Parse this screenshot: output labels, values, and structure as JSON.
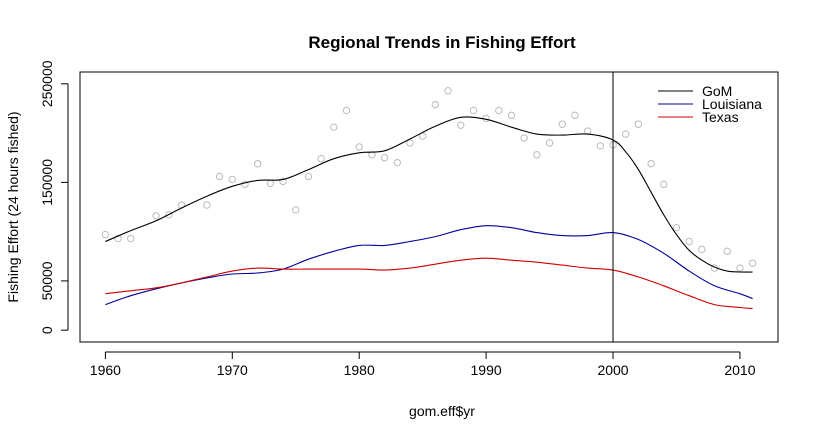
{
  "chart_data": {
    "type": "scatter",
    "title": "Regional Trends in Fishing Effort",
    "xlabel": "gom.eff$yr",
    "ylabel": "Fishing Effort (24 hours fished)",
    "xlim": [
      1958,
      2013
    ],
    "ylim": [
      -12000,
      262000
    ],
    "xticks": [
      1960,
      1970,
      1980,
      1990,
      2000,
      2010
    ],
    "yticks": [
      0,
      50000,
      150000,
      250000
    ],
    "grid": false,
    "legend_position": "top-right",
    "vline_x": 2000,
    "points": {
      "color": "#bbbbbb",
      "x": [
        1960,
        1961,
        1962,
        1964,
        1965,
        1966,
        1968,
        1969,
        1970,
        1971,
        1972,
        1973,
        1974,
        1975,
        1976,
        1977,
        1978,
        1979,
        1980,
        1981,
        1982,
        1983,
        1984,
        1985,
        1986,
        1987,
        1988,
        1989,
        1990,
        1991,
        1992,
        1993,
        1994,
        1995,
        1996,
        1997,
        1998,
        1999,
        2000,
        2001,
        2002,
        2003,
        2004,
        2005,
        2006,
        2007,
        2008,
        2009,
        2010,
        2011
      ],
      "y": [
        97000,
        93000,
        93000,
        116000,
        117000,
        127000,
        127000,
        156000,
        153000,
        148000,
        169000,
        149000,
        151000,
        122000,
        156000,
        174000,
        206000,
        223000,
        186000,
        178000,
        175000,
        170000,
        190000,
        197000,
        229000,
        243000,
        208000,
        223000,
        215000,
        223000,
        218000,
        195000,
        178000,
        190000,
        209000,
        218000,
        202000,
        187000,
        188000,
        199000,
        209000,
        169000,
        148000,
        104000,
        90000,
        82000,
        63000,
        80000,
        63000,
        68000
      ]
    },
    "series": [
      {
        "name": "GoM",
        "color": "#000000",
        "x": [
          1960,
          1962,
          1964,
          1966,
          1968,
          1970,
          1972,
          1974,
          1976,
          1978,
          1980,
          1982,
          1984,
          1986,
          1988,
          1990,
          1992,
          1994,
          1996,
          1998,
          2000,
          2001,
          2002,
          2003,
          2004,
          2005,
          2006,
          2007,
          2008,
          2009,
          2010,
          2011
        ],
        "y": [
          90000,
          101000,
          111000,
          124000,
          136000,
          146000,
          152000,
          153000,
          163000,
          174000,
          180000,
          182000,
          194000,
          207000,
          216000,
          214000,
          206000,
          199000,
          198000,
          199000,
          193000,
          181000,
          163000,
          140000,
          117000,
          97000,
          81000,
          71000,
          64000,
          60000,
          59000,
          59000
        ]
      },
      {
        "name": "Louisiana",
        "color": "#00009a",
        "x": [
          1960,
          1962,
          1964,
          1966,
          1968,
          1970,
          1972,
          1974,
          1976,
          1978,
          1980,
          1982,
          1984,
          1986,
          1988,
          1990,
          1992,
          1994,
          1996,
          1998,
          2000,
          2002,
          2004,
          2006,
          2008,
          2010,
          2011
        ],
        "y": [
          26000,
          35000,
          42000,
          48000,
          53000,
          57000,
          58000,
          62000,
          72000,
          80000,
          86000,
          86000,
          90000,
          95000,
          102000,
          106000,
          104000,
          99000,
          96000,
          96000,
          99000,
          92000,
          78000,
          60000,
          45000,
          37000,
          32000
        ]
      },
      {
        "name": "Texas",
        "color": "#cc0000",
        "x": [
          1960,
          1962,
          1964,
          1966,
          1968,
          1970,
          1972,
          1974,
          1976,
          1978,
          1980,
          1982,
          1984,
          1986,
          1988,
          1990,
          1992,
          1994,
          1996,
          1998,
          2000,
          2002,
          2004,
          2006,
          2008,
          2010,
          2011
        ],
        "y": [
          37000,
          40000,
          43000,
          48000,
          54000,
          60000,
          63000,
          62000,
          62000,
          62000,
          62000,
          61000,
          63000,
          67000,
          71000,
          73000,
          71000,
          69000,
          66000,
          63000,
          61000,
          54000,
          45000,
          35000,
          26000,
          23000,
          22000
        ]
      }
    ]
  }
}
